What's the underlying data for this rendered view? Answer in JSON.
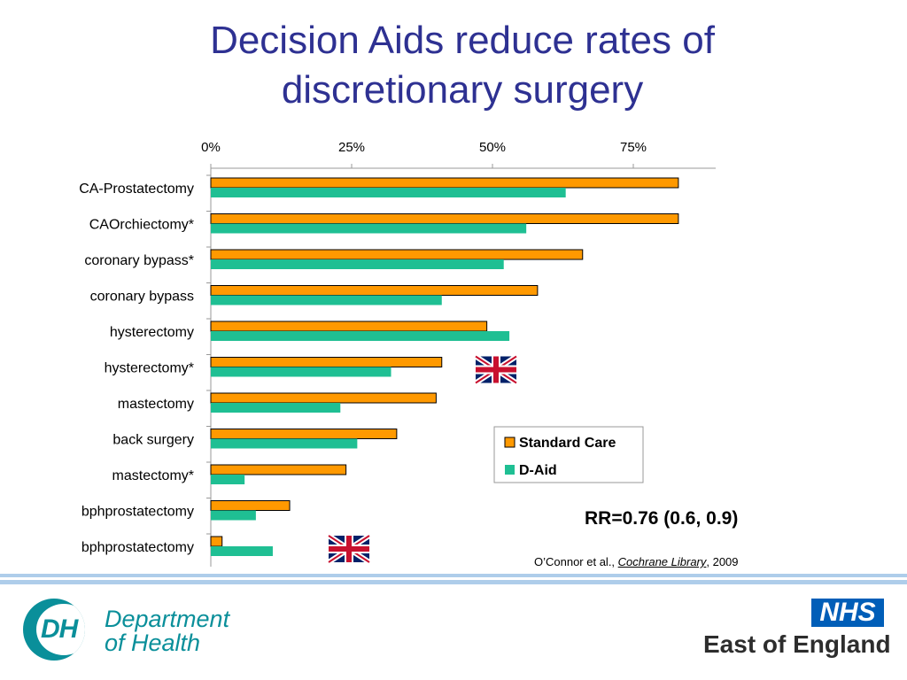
{
  "title": {
    "line1": "Decision Aids reduce rates of",
    "line2": "discretionary surgery"
  },
  "chart_data": {
    "type": "bar",
    "orientation": "horizontal",
    "title": "",
    "xlabel": "",
    "ylabel": "",
    "xlim": [
      0,
      90
    ],
    "ticks": [
      0,
      25,
      50,
      75
    ],
    "tick_labels": [
      "0%",
      "25%",
      "50%",
      "75%"
    ],
    "axis_position": "top",
    "grid": false,
    "legend_position": "bottom-right",
    "categories": [
      "CA-Prostatectomy",
      "CAOrchiectomy*",
      "coronary bypass*",
      "coronary bypass",
      "hysterectomy",
      "hysterectomy*",
      "mastectomy",
      "back surgery",
      "mastectomy*",
      "bphprostatectomy",
      "bphprostatectomy"
    ],
    "series": [
      {
        "name": "Standard Care",
        "color": "#ff9900",
        "values": [
          83,
          83,
          66,
          58,
          49,
          41,
          40,
          33,
          24,
          14,
          2
        ]
      },
      {
        "name": "D-Aid",
        "color": "#1fbf93",
        "values": [
          63,
          56,
          52,
          41,
          53,
          32,
          23,
          26,
          6,
          8,
          11
        ]
      }
    ],
    "uk_flag_rows": [
      5,
      10
    ]
  },
  "rr": "RR=0.76 (0.6, 0.9)",
  "citation": {
    "prefix": "O’Connor et al., ",
    "journal": "Cochrane Library",
    "suffix": ", 2009"
  },
  "logos": {
    "dh_letters": "DH",
    "dh_line1": "Department",
    "dh_line2": "of Health",
    "nhs": "NHS",
    "nhs_region": "East of England",
    "dh_color": "#0a8f9a",
    "nhs_color": "#005eb8"
  }
}
